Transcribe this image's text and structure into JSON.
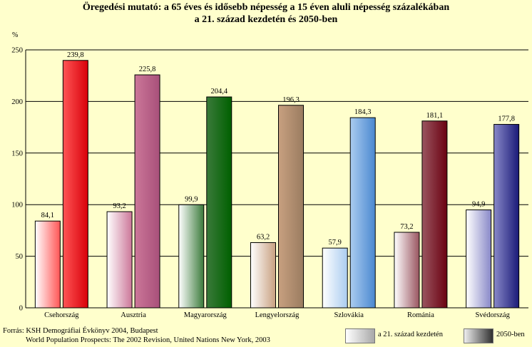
{
  "chart_data": {
    "type": "bar",
    "title": "Öregedési mutató: a 65 éves és idősebb népesség a 15 éven aluli népesség százalékában a 21. század kezdetén és 2050-ben",
    "title_line1": "Öregedési mutató: a 65 éves és idősebb népesség a 15 éven aluli népesség százalékában",
    "title_line2": "a 21. század kezdetén és 2050-ben",
    "ylabel": "%",
    "ylim": [
      0,
      250
    ],
    "yticks": [
      0,
      50,
      100,
      150,
      200,
      250
    ],
    "grid": true,
    "categories": [
      "Csehország",
      "Ausztria",
      "Magyarország",
      "Lengyelország",
      "Szlovákia",
      "Románia",
      "Svédország"
    ],
    "series": [
      {
        "name": "a 21. század kezdetén",
        "values": [
          84.1,
          93.2,
          99.9,
          63.2,
          57.9,
          73.2,
          94.9
        ],
        "labels": [
          "84,1",
          "93,2",
          "99,9",
          "63,2",
          "57,9",
          "73,2",
          "94,9"
        ]
      },
      {
        "name": "2050-ben",
        "values": [
          239.8,
          225.8,
          204.4,
          196.3,
          184.3,
          181.1,
          177.8
        ],
        "labels": [
          "239,8",
          "225,8",
          "204,4",
          "196,3",
          "184,3",
          "181,1",
          "177,8"
        ]
      }
    ],
    "colors": {
      "start": [
        "#FF5555",
        "#CC7799",
        "#3A7A3A",
        "#C8A080",
        "#AACCF0",
        "#9A5560",
        "#8888C8"
      ],
      "end": [
        "#D8000A",
        "#A8507A",
        "#006000",
        "#9A7C60",
        "#4A88D0",
        "#6A0010",
        "#1A1A78"
      ],
      "light": "#FFFFFF",
      "background": "#FFFFCC",
      "grid": "#000000"
    },
    "legend_position": "bottom-right"
  },
  "source": {
    "line1": "Forrás: KSH Demográfiai Évkönyv 2004, Budapest",
    "line2": "World Population Prospects: The 2002 Revision, United Nations New York, 2003"
  }
}
